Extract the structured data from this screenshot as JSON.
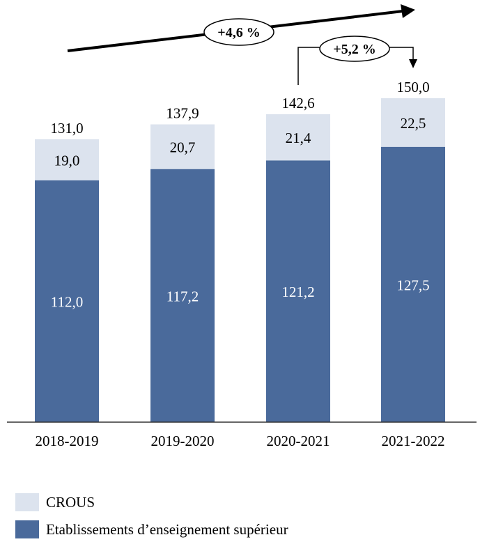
{
  "chart_data": {
    "type": "bar",
    "stacked": true,
    "categories": [
      "2018-2019",
      "2019-2020",
      "2020-2021",
      "2021-2022"
    ],
    "series": [
      {
        "name": "Etablissements d’enseignement supérieur",
        "values": [
          "112,0",
          "117,2",
          "121,2",
          "127,5"
        ],
        "numeric": [
          112.0,
          117.2,
          121.2,
          127.5
        ],
        "color": "#4a6a9b"
      },
      {
        "name": "CROUS",
        "values": [
          "19,0",
          "20,7",
          "21,4",
          "22,5"
        ],
        "numeric": [
          19.0,
          20.7,
          21.4,
          22.5
        ],
        "color": "#dce3ee"
      }
    ],
    "totals": [
      "131,0",
      "137,9",
      "142,6",
      "150,0"
    ],
    "ylim": [
      0,
      150
    ],
    "annotations": {
      "overall_growth": "+4,6 %",
      "last_year_growth": "+5,2 %"
    },
    "legend_position": "bottom-left",
    "grid": false
  }
}
